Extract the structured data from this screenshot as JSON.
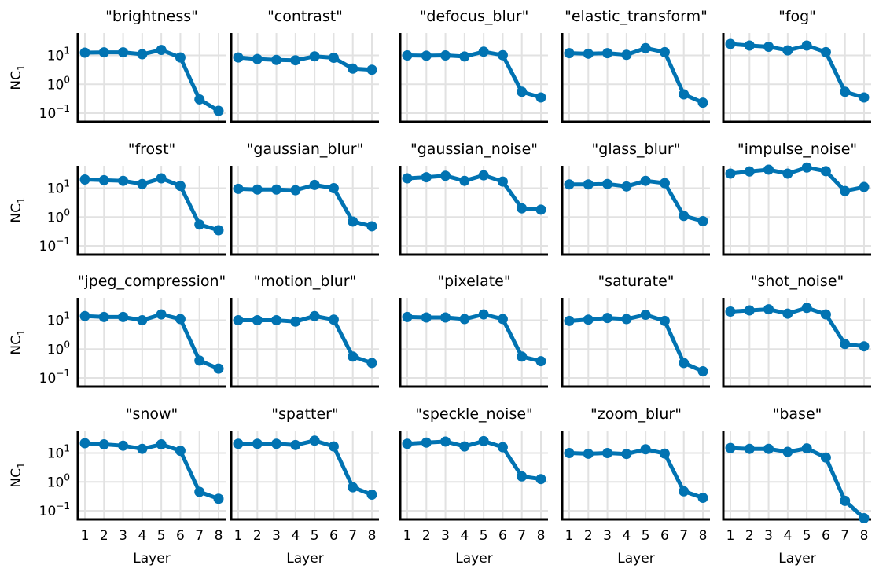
{
  "figure": {
    "ylabel_main": "NC",
    "ylabel_sub": "1",
    "xlabel": "Layer"
  },
  "chart_data": [
    {
      "type": "line",
      "title": "\"brightness\"",
      "x": [
        1,
        2,
        3,
        4,
        5,
        6,
        7,
        8
      ],
      "values": [
        12.5,
        12.8,
        12.8,
        11,
        15.5,
        8.5,
        0.3,
        0.12
      ],
      "xlabel": "",
      "ylabel": "NC1",
      "yscale": "log",
      "ylim": [
        0.05,
        60
      ],
      "yticks": [
        0.1,
        1,
        10
      ],
      "color": "#0173b2",
      "grid": true
    },
    {
      "type": "line",
      "title": "\"contrast\"",
      "x": [
        1,
        2,
        3,
        4,
        5,
        6,
        7,
        8
      ],
      "values": [
        8.5,
        7.5,
        7,
        6.8,
        9.3,
        8.3,
        3.5,
        3.2
      ],
      "xlabel": "",
      "ylabel": "",
      "yscale": "log",
      "ylim": [
        0.05,
        60
      ],
      "yticks": [
        0.1,
        1,
        10
      ],
      "color": "#0173b2",
      "grid": true
    },
    {
      "type": "line",
      "title": "\"defocus_blur\"",
      "x": [
        1,
        2,
        3,
        4,
        5,
        6,
        7,
        8
      ],
      "values": [
        10,
        9.8,
        10,
        9.2,
        13.5,
        10.2,
        0.55,
        0.35
      ],
      "xlabel": "",
      "ylabel": "",
      "yscale": "log",
      "ylim": [
        0.05,
        60
      ],
      "yticks": [
        0.1,
        1,
        10
      ],
      "color": "#0173b2",
      "grid": true
    },
    {
      "type": "line",
      "title": "\"elastic_transform\"",
      "x": [
        1,
        2,
        3,
        4,
        5,
        6,
        7,
        8
      ],
      "values": [
        12,
        11.5,
        12,
        10.5,
        18,
        13,
        0.45,
        0.23
      ],
      "xlabel": "",
      "ylabel": "",
      "yscale": "log",
      "ylim": [
        0.05,
        60
      ],
      "yticks": [
        0.1,
        1,
        10
      ],
      "color": "#0173b2",
      "grid": true
    },
    {
      "type": "line",
      "title": "\"fog\"",
      "x": [
        1,
        2,
        3,
        4,
        5,
        6,
        7,
        8
      ],
      "values": [
        25,
        22,
        20,
        15,
        22,
        13,
        0.55,
        0.35
      ],
      "xlabel": "",
      "ylabel": "",
      "yscale": "log",
      "ylim": [
        0.05,
        60
      ],
      "yticks": [
        0.1,
        1,
        10
      ],
      "color": "#0173b2",
      "grid": true
    },
    {
      "type": "line",
      "title": "\"frost\"",
      "x": [
        1,
        2,
        3,
        4,
        5,
        6,
        7,
        8
      ],
      "values": [
        20,
        19,
        18,
        14,
        22,
        12,
        0.55,
        0.35
      ],
      "xlabel": "",
      "ylabel": "NC1",
      "yscale": "log",
      "ylim": [
        0.05,
        60
      ],
      "yticks": [
        0.1,
        1,
        10
      ],
      "color": "#0173b2",
      "grid": true
    },
    {
      "type": "line",
      "title": "\"gaussian_blur\"",
      "x": [
        1,
        2,
        3,
        4,
        5,
        6,
        7,
        8
      ],
      "values": [
        9.5,
        9,
        9,
        8.5,
        13,
        10,
        0.7,
        0.48
      ],
      "xlabel": "",
      "ylabel": "",
      "yscale": "log",
      "ylim": [
        0.05,
        60
      ],
      "yticks": [
        0.1,
        1,
        10
      ],
      "color": "#0173b2",
      "grid": true
    },
    {
      "type": "line",
      "title": "\"gaussian_noise\"",
      "x": [
        1,
        2,
        3,
        4,
        5,
        6,
        7,
        8
      ],
      "values": [
        22,
        24,
        27,
        18,
        28,
        17,
        2,
        1.8
      ],
      "xlabel": "",
      "ylabel": "",
      "yscale": "log",
      "ylim": [
        0.05,
        60
      ],
      "yticks": [
        0.1,
        1,
        10
      ],
      "color": "#0173b2",
      "grid": true
    },
    {
      "type": "line",
      "title": "\"glass_blur\"",
      "x": [
        1,
        2,
        3,
        4,
        5,
        6,
        7,
        8
      ],
      "values": [
        13.5,
        13.5,
        14,
        11.5,
        18,
        15,
        1.1,
        0.72
      ],
      "xlabel": "",
      "ylabel": "",
      "yscale": "log",
      "ylim": [
        0.05,
        60
      ],
      "yticks": [
        0.1,
        1,
        10
      ],
      "color": "#0173b2",
      "grid": true
    },
    {
      "type": "line",
      "title": "\"impulse_noise\"",
      "x": [
        1,
        2,
        3,
        4,
        5,
        6,
        7,
        8
      ],
      "values": [
        32,
        38,
        44,
        32,
        52,
        39,
        8,
        11
      ],
      "xlabel": "",
      "ylabel": "",
      "yscale": "log",
      "ylim": [
        0.05,
        60
      ],
      "yticks": [
        0.1,
        1,
        10
      ],
      "color": "#0173b2",
      "grid": true
    },
    {
      "type": "line",
      "title": "\"jpeg_compression\"",
      "x": [
        1,
        2,
        3,
        4,
        5,
        6,
        7,
        8
      ],
      "values": [
        14,
        13,
        13,
        10,
        16,
        11,
        0.4,
        0.21
      ],
      "xlabel": "",
      "ylabel": "NC1",
      "yscale": "log",
      "ylim": [
        0.05,
        60
      ],
      "yticks": [
        0.1,
        1,
        10
      ],
      "color": "#0173b2",
      "grid": true
    },
    {
      "type": "line",
      "title": "\"motion_blur\"",
      "x": [
        1,
        2,
        3,
        4,
        5,
        6,
        7,
        8
      ],
      "values": [
        10,
        10,
        10,
        9,
        14,
        10.5,
        0.55,
        0.33
      ],
      "xlabel": "",
      "ylabel": "",
      "yscale": "log",
      "ylim": [
        0.05,
        60
      ],
      "yticks": [
        0.1,
        1,
        10
      ],
      "color": "#0173b2",
      "grid": true
    },
    {
      "type": "line",
      "title": "\"pixelate\"",
      "x": [
        1,
        2,
        3,
        4,
        5,
        6,
        7,
        8
      ],
      "values": [
        13,
        12.5,
        12.5,
        11,
        16,
        11,
        0.55,
        0.38
      ],
      "xlabel": "",
      "ylabel": "",
      "yscale": "log",
      "ylim": [
        0.05,
        60
      ],
      "yticks": [
        0.1,
        1,
        10
      ],
      "color": "#0173b2",
      "grid": true
    },
    {
      "type": "line",
      "title": "\"saturate\"",
      "x": [
        1,
        2,
        3,
        4,
        5,
        6,
        7,
        8
      ],
      "values": [
        9.5,
        10.5,
        12,
        11,
        15.5,
        9.5,
        0.33,
        0.17
      ],
      "xlabel": "",
      "ylabel": "",
      "yscale": "log",
      "ylim": [
        0.05,
        60
      ],
      "yticks": [
        0.1,
        1,
        10
      ],
      "color": "#0173b2",
      "grid": true
    },
    {
      "type": "line",
      "title": "\"shot_noise\"",
      "x": [
        1,
        2,
        3,
        4,
        5,
        6,
        7,
        8
      ],
      "values": [
        20,
        22,
        24,
        17,
        27,
        16,
        1.5,
        1.25
      ],
      "xlabel": "",
      "ylabel": "",
      "yscale": "log",
      "ylim": [
        0.05,
        60
      ],
      "yticks": [
        0.1,
        1,
        10
      ],
      "color": "#0173b2",
      "grid": true
    },
    {
      "type": "line",
      "title": "\"snow\"",
      "x": [
        1,
        2,
        3,
        4,
        5,
        6,
        7,
        8
      ],
      "values": [
        22,
        20,
        18,
        14,
        20,
        12,
        0.45,
        0.26
      ],
      "xlabel": "Layer",
      "ylabel": "NC1",
      "yscale": "log",
      "ylim": [
        0.05,
        60
      ],
      "yticks": [
        0.1,
        1,
        10
      ],
      "color": "#0173b2",
      "grid": true
    },
    {
      "type": "line",
      "title": "\"spatter\"",
      "x": [
        1,
        2,
        3,
        4,
        5,
        6,
        7,
        8
      ],
      "values": [
        21,
        21,
        21,
        19,
        27,
        17,
        0.65,
        0.36
      ],
      "xlabel": "Layer",
      "ylabel": "",
      "yscale": "log",
      "ylim": [
        0.05,
        60
      ],
      "yticks": [
        0.1,
        1,
        10
      ],
      "color": "#0173b2",
      "grid": true
    },
    {
      "type": "line",
      "title": "\"speckle_noise\"",
      "x": [
        1,
        2,
        3,
        4,
        5,
        6,
        7,
        8
      ],
      "values": [
        21,
        23,
        25,
        17,
        26,
        16,
        1.55,
        1.25
      ],
      "xlabel": "Layer",
      "ylabel": "",
      "yscale": "log",
      "ylim": [
        0.05,
        60
      ],
      "yticks": [
        0.1,
        1,
        10
      ],
      "color": "#0173b2",
      "grid": true
    },
    {
      "type": "line",
      "title": "\"zoom_blur\"",
      "x": [
        1,
        2,
        3,
        4,
        5,
        6,
        7,
        8
      ],
      "values": [
        10,
        9.5,
        10,
        9.3,
        13.5,
        9.6,
        0.47,
        0.28
      ],
      "xlabel": "Layer",
      "ylabel": "",
      "yscale": "log",
      "ylim": [
        0.05,
        60
      ],
      "yticks": [
        0.1,
        1,
        10
      ],
      "color": "#0173b2",
      "grid": true
    },
    {
      "type": "line",
      "title": "\"base\"",
      "x": [
        1,
        2,
        3,
        4,
        5,
        6,
        7,
        8
      ],
      "values": [
        15,
        14,
        14,
        11,
        14.5,
        7,
        0.22,
        0.055
      ],
      "xlabel": "Layer",
      "ylabel": "",
      "yscale": "log",
      "ylim": [
        0.05,
        60
      ],
      "yticks": [
        0.1,
        1,
        10
      ],
      "color": "#0173b2",
      "grid": true
    }
  ]
}
